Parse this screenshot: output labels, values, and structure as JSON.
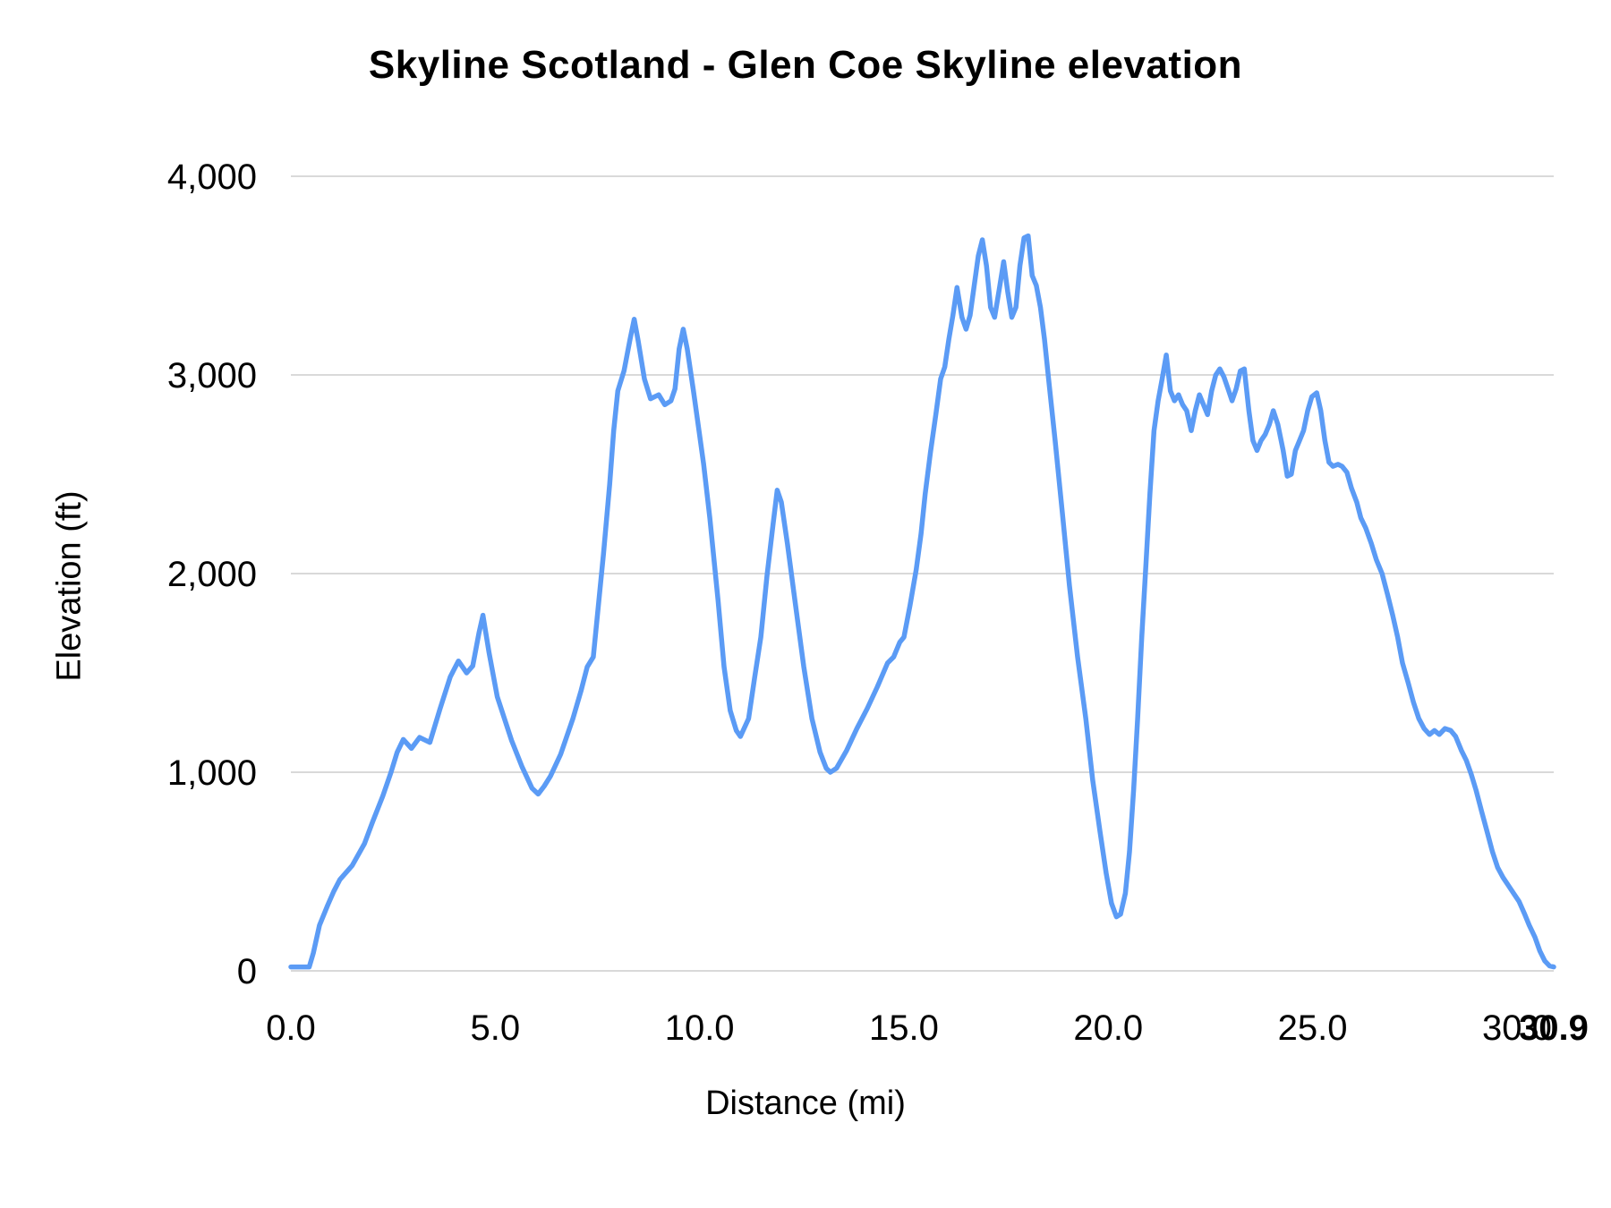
{
  "chart_data": {
    "type": "line",
    "title": "Skyline Scotland - Glen Coe Skyline elevation",
    "xlabel": "Distance (mi)",
    "ylabel": "Elevation (ft)",
    "xlim": [
      0,
      30.9
    ],
    "ylim": [
      0,
      4000
    ],
    "grid": "horizontal-only",
    "legend": "none",
    "line_color": "#5B9BF5",
    "gridline_color": "#D9D9D9",
    "axis_text_color": "#000000",
    "background_color": "#FFFFFF",
    "y_ticks": [
      {
        "value": 0,
        "label": "0"
      },
      {
        "value": 1000,
        "label": "1,000"
      },
      {
        "value": 2000,
        "label": "2,000"
      },
      {
        "value": 3000,
        "label": "3,000"
      },
      {
        "value": 4000,
        "label": "4,000"
      }
    ],
    "x_ticks": [
      {
        "value": 0,
        "label": "0.0"
      },
      {
        "value": 5,
        "label": "5.0"
      },
      {
        "value": 10,
        "label": "10.0"
      },
      {
        "value": 15,
        "label": "15.0"
      },
      {
        "value": 20,
        "label": "20.0"
      },
      {
        "value": 25,
        "label": "25.0"
      },
      {
        "value": 30,
        "label": "30.0"
      },
      {
        "value": 30.9,
        "label": "30.9",
        "bold": true
      }
    ],
    "series": [
      {
        "name": "Elevation",
        "points": [
          [
            0,
            20
          ],
          [
            0.45,
            20
          ],
          [
            0.55,
            90
          ],
          [
            0.7,
            230
          ],
          [
            0.9,
            330
          ],
          [
            1.05,
            400
          ],
          [
            1.2,
            460
          ],
          [
            1.5,
            530
          ],
          [
            1.8,
            640
          ],
          [
            2.0,
            750
          ],
          [
            2.25,
            880
          ],
          [
            2.45,
            1000
          ],
          [
            2.6,
            1100
          ],
          [
            2.75,
            1165
          ],
          [
            2.95,
            1120
          ],
          [
            3.15,
            1175
          ],
          [
            3.4,
            1150
          ],
          [
            3.65,
            1320
          ],
          [
            3.9,
            1480
          ],
          [
            4.1,
            1560
          ],
          [
            4.3,
            1500
          ],
          [
            4.45,
            1535
          ],
          [
            4.6,
            1700
          ],
          [
            4.7,
            1790
          ],
          [
            4.85,
            1600
          ],
          [
            5.05,
            1380
          ],
          [
            5.4,
            1160
          ],
          [
            5.65,
            1030
          ],
          [
            5.9,
            920
          ],
          [
            6.05,
            890
          ],
          [
            6.2,
            930
          ],
          [
            6.35,
            980
          ],
          [
            6.6,
            1090
          ],
          [
            6.9,
            1270
          ],
          [
            7.1,
            1410
          ],
          [
            7.25,
            1530
          ],
          [
            7.4,
            1580
          ],
          [
            7.5,
            1790
          ],
          [
            7.65,
            2100
          ],
          [
            7.8,
            2450
          ],
          [
            7.9,
            2720
          ],
          [
            8.0,
            2920
          ],
          [
            8.15,
            3020
          ],
          [
            8.3,
            3180
          ],
          [
            8.4,
            3280
          ],
          [
            8.5,
            3170
          ],
          [
            8.65,
            2980
          ],
          [
            8.8,
            2880
          ],
          [
            9.0,
            2900
          ],
          [
            9.15,
            2850
          ],
          [
            9.3,
            2870
          ],
          [
            9.4,
            2930
          ],
          [
            9.5,
            3130
          ],
          [
            9.6,
            3230
          ],
          [
            9.7,
            3130
          ],
          [
            9.85,
            2920
          ],
          [
            10.0,
            2700
          ],
          [
            10.1,
            2550
          ],
          [
            10.25,
            2280
          ],
          [
            10.45,
            1870
          ],
          [
            10.6,
            1530
          ],
          [
            10.75,
            1310
          ],
          [
            10.9,
            1210
          ],
          [
            11.0,
            1180
          ],
          [
            11.2,
            1270
          ],
          [
            11.35,
            1480
          ],
          [
            11.5,
            1680
          ],
          [
            11.65,
            1990
          ],
          [
            11.8,
            2250
          ],
          [
            11.9,
            2420
          ],
          [
            12.0,
            2360
          ],
          [
            12.15,
            2150
          ],
          [
            12.35,
            1840
          ],
          [
            12.55,
            1530
          ],
          [
            12.75,
            1270
          ],
          [
            12.95,
            1100
          ],
          [
            13.1,
            1020
          ],
          [
            13.2,
            1000
          ],
          [
            13.35,
            1020
          ],
          [
            13.6,
            1110
          ],
          [
            13.85,
            1220
          ],
          [
            14.1,
            1320
          ],
          [
            14.35,
            1430
          ],
          [
            14.6,
            1550
          ],
          [
            14.75,
            1580
          ],
          [
            14.9,
            1655
          ],
          [
            15.0,
            1680
          ],
          [
            15.15,
            1840
          ],
          [
            15.3,
            2020
          ],
          [
            15.42,
            2200
          ],
          [
            15.52,
            2400
          ],
          [
            15.65,
            2610
          ],
          [
            15.78,
            2800
          ],
          [
            15.9,
            2980
          ],
          [
            16.0,
            3040
          ],
          [
            16.1,
            3180
          ],
          [
            16.2,
            3300
          ],
          [
            16.3,
            3440
          ],
          [
            16.42,
            3290
          ],
          [
            16.52,
            3230
          ],
          [
            16.62,
            3300
          ],
          [
            16.72,
            3450
          ],
          [
            16.82,
            3600
          ],
          [
            16.92,
            3680
          ],
          [
            17.02,
            3550
          ],
          [
            17.12,
            3340
          ],
          [
            17.22,
            3290
          ],
          [
            17.34,
            3440
          ],
          [
            17.44,
            3570
          ],
          [
            17.54,
            3420
          ],
          [
            17.64,
            3290
          ],
          [
            17.74,
            3340
          ],
          [
            17.84,
            3550
          ],
          [
            17.94,
            3690
          ],
          [
            18.04,
            3700
          ],
          [
            18.14,
            3500
          ],
          [
            18.24,
            3450
          ],
          [
            18.34,
            3340
          ],
          [
            18.44,
            3180
          ],
          [
            18.54,
            2980
          ],
          [
            18.7,
            2670
          ],
          [
            18.88,
            2300
          ],
          [
            19.05,
            1940
          ],
          [
            19.25,
            1580
          ],
          [
            19.45,
            1270
          ],
          [
            19.62,
            960
          ],
          [
            19.8,
            700
          ],
          [
            19.95,
            490
          ],
          [
            20.08,
            340
          ],
          [
            20.2,
            272
          ],
          [
            20.3,
            285
          ],
          [
            20.42,
            390
          ],
          [
            20.52,
            600
          ],
          [
            20.62,
            910
          ],
          [
            20.72,
            1270
          ],
          [
            20.82,
            1680
          ],
          [
            20.92,
            2040
          ],
          [
            21.02,
            2400
          ],
          [
            21.12,
            2720
          ],
          [
            21.22,
            2870
          ],
          [
            21.32,
            2980
          ],
          [
            21.42,
            3100
          ],
          [
            21.52,
            2920
          ],
          [
            21.62,
            2870
          ],
          [
            21.72,
            2900
          ],
          [
            21.82,
            2850
          ],
          [
            21.92,
            2820
          ],
          [
            22.03,
            2720
          ],
          [
            22.13,
            2820
          ],
          [
            22.23,
            2900
          ],
          [
            22.33,
            2850
          ],
          [
            22.43,
            2800
          ],
          [
            22.53,
            2920
          ],
          [
            22.63,
            3000
          ],
          [
            22.73,
            3030
          ],
          [
            22.83,
            2990
          ],
          [
            22.93,
            2930
          ],
          [
            23.03,
            2870
          ],
          [
            23.13,
            2930
          ],
          [
            23.23,
            3020
          ],
          [
            23.33,
            3030
          ],
          [
            23.44,
            2820
          ],
          [
            23.54,
            2670
          ],
          [
            23.64,
            2620
          ],
          [
            23.74,
            2670
          ],
          [
            23.84,
            2700
          ],
          [
            23.94,
            2750
          ],
          [
            24.04,
            2820
          ],
          [
            24.15,
            2750
          ],
          [
            24.28,
            2620
          ],
          [
            24.38,
            2490
          ],
          [
            24.48,
            2500
          ],
          [
            24.58,
            2620
          ],
          [
            24.68,
            2670
          ],
          [
            24.78,
            2720
          ],
          [
            24.88,
            2820
          ],
          [
            24.98,
            2890
          ],
          [
            25.1,
            2910
          ],
          [
            25.2,
            2820
          ],
          [
            25.3,
            2670
          ],
          [
            25.4,
            2560
          ],
          [
            25.5,
            2540
          ],
          [
            25.62,
            2550
          ],
          [
            25.72,
            2540
          ],
          [
            25.84,
            2510
          ],
          [
            25.95,
            2430
          ],
          [
            26.08,
            2360
          ],
          [
            26.18,
            2280
          ],
          [
            26.3,
            2230
          ],
          [
            26.44,
            2150
          ],
          [
            26.56,
            2070
          ],
          [
            26.7,
            2000
          ],
          [
            26.84,
            1890
          ],
          [
            26.96,
            1790
          ],
          [
            27.08,
            1680
          ],
          [
            27.2,
            1550
          ],
          [
            27.34,
            1450
          ],
          [
            27.47,
            1350
          ],
          [
            27.6,
            1270
          ],
          [
            27.73,
            1220
          ],
          [
            27.86,
            1190
          ],
          [
            27.98,
            1210
          ],
          [
            28.1,
            1190
          ],
          [
            28.24,
            1220
          ],
          [
            28.38,
            1210
          ],
          [
            28.5,
            1180
          ],
          [
            28.64,
            1110
          ],
          [
            28.76,
            1060
          ],
          [
            28.88,
            990
          ],
          [
            29.0,
            910
          ],
          [
            29.14,
            800
          ],
          [
            29.27,
            700
          ],
          [
            29.4,
            600
          ],
          [
            29.53,
            520
          ],
          [
            29.66,
            470
          ],
          [
            29.79,
            430
          ],
          [
            29.92,
            390
          ],
          [
            30.05,
            350
          ],
          [
            30.18,
            290
          ],
          [
            30.3,
            230
          ],
          [
            30.44,
            170
          ],
          [
            30.56,
            100
          ],
          [
            30.68,
            50
          ],
          [
            30.8,
            25
          ],
          [
            30.9,
            20
          ]
        ]
      }
    ]
  }
}
